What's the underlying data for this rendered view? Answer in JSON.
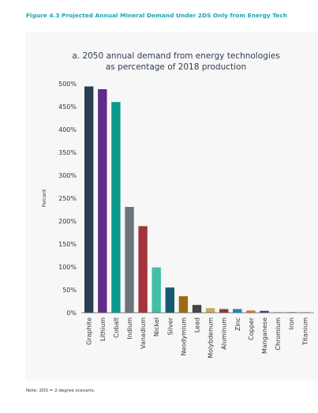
{
  "figure_title": "Figure 4.3 Projected Annual Mineral Demand Under 2DS Only from Energy Tech",
  "note": "Note: 2DS = 2-degree scenario.",
  "chart_data": {
    "type": "bar",
    "title_lines": [
      "a. 2050 annual demand from energy technologies",
      "as percentage of 2018 production"
    ],
    "xlabel": "",
    "ylabel": "Percent",
    "ylim": [
      0,
      500
    ],
    "yticks": [
      0,
      50,
      100,
      150,
      200,
      250,
      300,
      350,
      400,
      450,
      500
    ],
    "ytick_labels": [
      "0%",
      "50%",
      "100%",
      "150%",
      "200%",
      "250%",
      "300%",
      "350%",
      "400%",
      "450%",
      "500%"
    ],
    "grid": false,
    "categories": [
      "Graphite",
      "Lithium",
      "Cobalt",
      "Indium",
      "Vanadium",
      "Nickel",
      "Silver",
      "Neodymium",
      "Lead",
      "Molybdenum",
      "Aluminum",
      "Zinc",
      "Copper",
      "Manganese",
      "Chromium",
      "Iron",
      "Titanium"
    ],
    "values": [
      494,
      488,
      460,
      231,
      189,
      99,
      55,
      36,
      17,
      10,
      8,
      8,
      5,
      4,
      1,
      1,
      1
    ],
    "colors": [
      "#2b3f52",
      "#5e2d87",
      "#0c9a8e",
      "#6a747b",
      "#a3353a",
      "#44bfa5",
      "#165a72",
      "#9e6a16",
      "#444444",
      "#c9a96a",
      "#8f3b3b",
      "#1b86c8",
      "#e87a30",
      "#5a2d72",
      "#5aaa9a",
      "#1c5a6e",
      "#22a7c3"
    ]
  }
}
